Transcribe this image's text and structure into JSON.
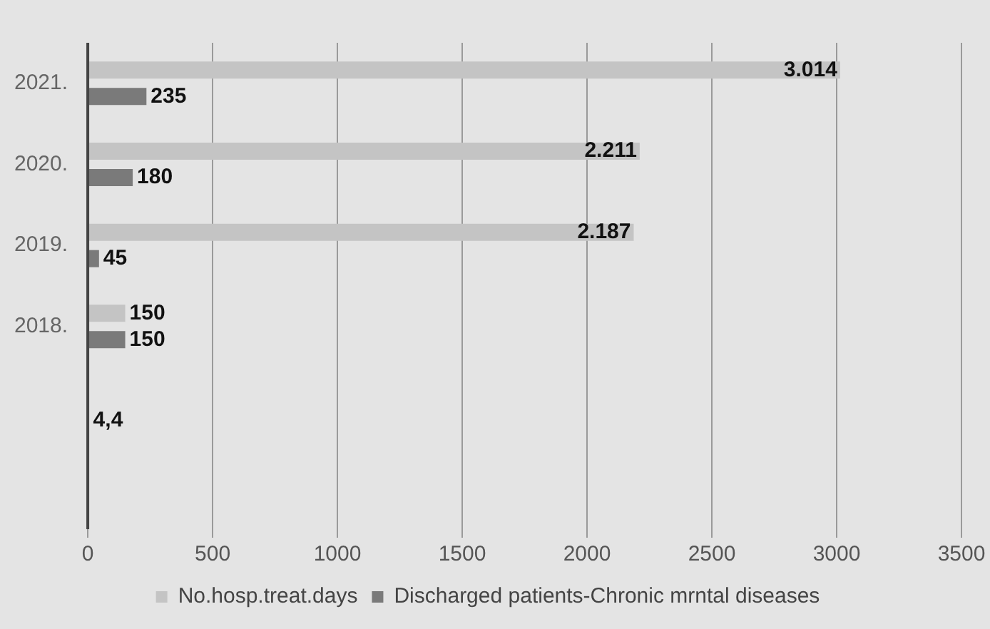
{
  "chart_data": {
    "type": "bar",
    "orientation": "horizontal",
    "categories": [
      "2021.",
      "2020.",
      "2019.",
      "2018.",
      null,
      null
    ],
    "series": [
      {
        "name": "No.hosp.treat.days",
        "color": "#c4c4c4",
        "values": [
          3014,
          2211,
          2187,
          150,
          null,
          null
        ],
        "value_labels": [
          "3.014",
          "2.211",
          "2.187",
          "150",
          null,
          null
        ]
      },
      {
        "name": "Discharged patients-Chronic mrntal diseases",
        "color": "#7a7a7a",
        "values": [
          235,
          180,
          45,
          150,
          4.4,
          null
        ],
        "value_labels": [
          "235",
          "180",
          "45",
          "150",
          "4,4",
          null
        ]
      }
    ],
    "xlim": [
      0,
      3500
    ],
    "xticks": [
      0,
      500,
      1000,
      1500,
      2000,
      2500,
      3000,
      3500
    ],
    "grid": "x",
    "legend": "bottom"
  }
}
